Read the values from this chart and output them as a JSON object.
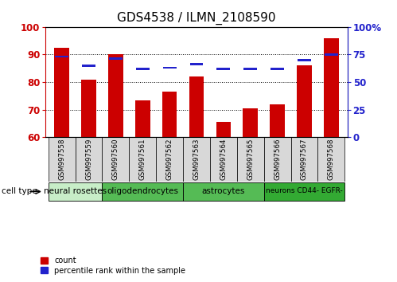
{
  "title": "GDS4538 / ILMN_2108590",
  "samples": [
    "GSM997558",
    "GSM997559",
    "GSM997560",
    "GSM997561",
    "GSM997562",
    "GSM997563",
    "GSM997564",
    "GSM997565",
    "GSM997566",
    "GSM997567",
    "GSM997568"
  ],
  "count_values": [
    92.5,
    81.0,
    90.0,
    73.5,
    76.5,
    82.0,
    65.5,
    70.5,
    72.0,
    86.0,
    96.0
  ],
  "percentile_values": [
    73,
    65,
    71,
    62,
    63,
    66,
    62,
    62,
    62,
    70,
    75
  ],
  "ylim_left": [
    60,
    100
  ],
  "ylim_right": [
    0,
    100
  ],
  "right_ticks": [
    0,
    25,
    50,
    75,
    100
  ],
  "right_tick_labels": [
    "0",
    "25",
    "50",
    "75",
    "100%"
  ],
  "left_ticks": [
    60,
    70,
    80,
    90,
    100
  ],
  "bar_color": "#CC0000",
  "percentile_color": "#2222CC",
  "bar_width": 0.55,
  "groups": [
    {
      "label": "neural rosettes",
      "cols": [
        0,
        1
      ],
      "color": "#d0efd0"
    },
    {
      "label": "oligodendrocytes",
      "cols": [
        2,
        3,
        4
      ],
      "color": "#55bb55"
    },
    {
      "label": "astrocytes",
      "cols": [
        5,
        6,
        7
      ],
      "color": "#55bb55"
    },
    {
      "label": "neurons CD44- EGFR-",
      "cols": [
        8,
        9,
        10
      ],
      "color": "#33aa33"
    }
  ],
  "tick_color_left": "#CC0000",
  "tick_color_right": "#2222CC",
  "title_fontsize": 11
}
